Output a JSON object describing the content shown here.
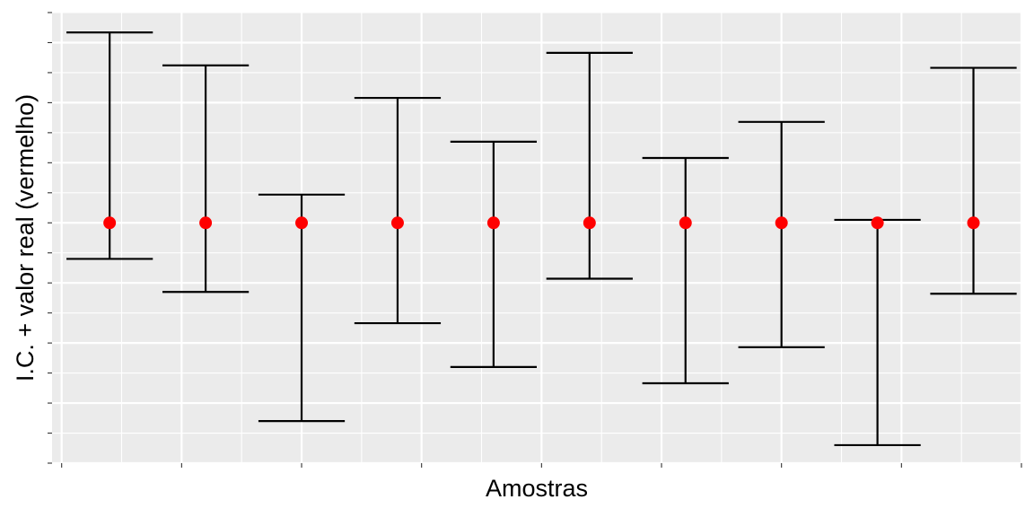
{
  "chart_data": {
    "type": "errorbar",
    "xlabel": "Amostras",
    "ylabel": "I.C. + valor real (vermelho)",
    "ylim": [
      -4,
      3.5
    ],
    "true_value": 0,
    "series": [
      {
        "name": "I.C.",
        "values": [
          {
            "x": 1,
            "lower": -0.6,
            "upper": 3.17
          },
          {
            "x": 2,
            "lower": -1.15,
            "upper": 2.62
          },
          {
            "x": 3,
            "lower": -3.3,
            "upper": 0.47
          },
          {
            "x": 4,
            "lower": -1.67,
            "upper": 2.08
          },
          {
            "x": 5,
            "lower": -2.4,
            "upper": 1.35
          },
          {
            "x": 6,
            "lower": -0.93,
            "upper": 2.83
          },
          {
            "x": 7,
            "lower": -2.67,
            "upper": 1.08
          },
          {
            "x": 8,
            "lower": -2.07,
            "upper": 1.68
          },
          {
            "x": 9,
            "lower": -3.7,
            "upper": 0.05
          },
          {
            "x": 10,
            "lower": -1.18,
            "upper": 2.58
          }
        ]
      }
    ],
    "grid": true,
    "point_color": "#ff0000",
    "bar_color": "#000000",
    "panel_color": "#ebebeb",
    "gridline_color": "#ffffff"
  }
}
